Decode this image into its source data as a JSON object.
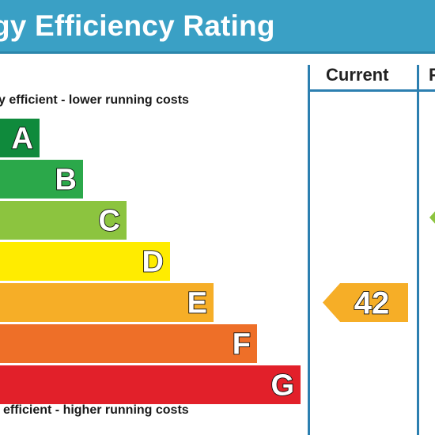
{
  "header": {
    "title": "gy Efficiency Rating"
  },
  "columns": {
    "current_label": "Current",
    "potential_label": "P"
  },
  "captions": {
    "top": "y efficient - lower running costs",
    "bottom": "efficient - higher running costs"
  },
  "colors": {
    "header": "#3aa0c5",
    "line": "#2c7fb0"
  },
  "chart_data": {
    "type": "bar",
    "title": "",
    "categories": [
      "A",
      "B",
      "C",
      "D",
      "E",
      "F",
      "G"
    ],
    "band_colors": [
      "#0f8a3c",
      "#2ba84a",
      "#8cc43f",
      "#ffec00",
      "#f6ae27",
      "#ee6f28",
      "#e2202a"
    ],
    "current_rating": {
      "value": 42,
      "band": "E",
      "color": "#f6ae27"
    },
    "potential_rating": {
      "band": "C",
      "color": "#8cc43f",
      "note": "mostly hidden by cropping; only arrow tip visible"
    }
  }
}
